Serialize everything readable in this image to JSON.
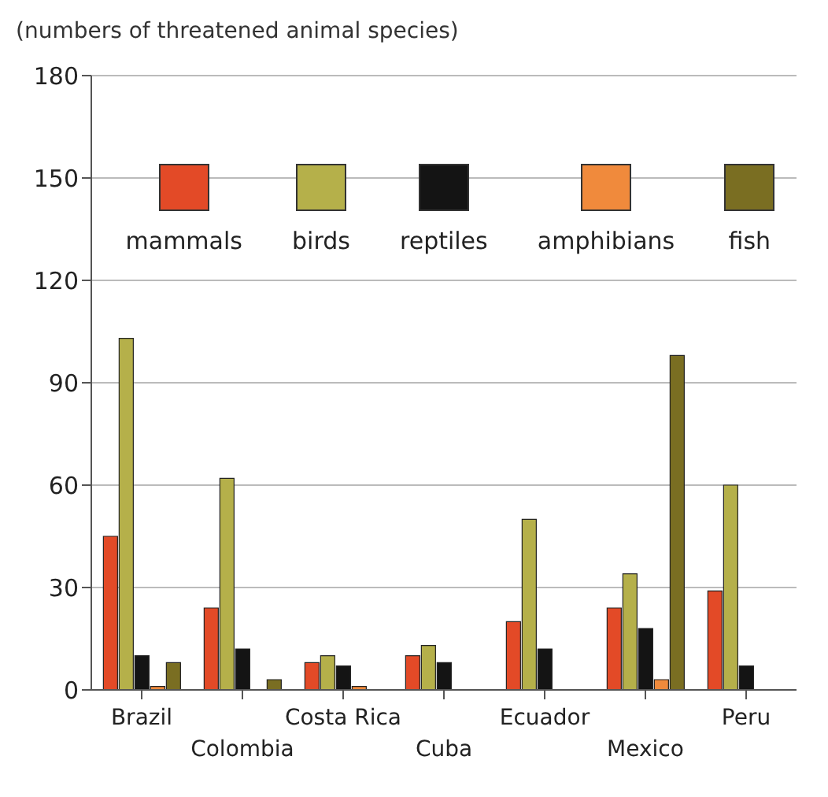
{
  "chart_data": {
    "type": "bar",
    "title": "(numbers of threatened animal species)",
    "categories": [
      "Brazil",
      "Colombia",
      "Costa Rica",
      "Cuba",
      "Ecuador",
      "Mexico",
      "Peru"
    ],
    "series": [
      {
        "name": "mammals",
        "color": "#e34a27",
        "values": [
          45,
          24,
          8,
          10,
          20,
          24,
          29
        ]
      },
      {
        "name": "birds",
        "color": "#b5b04a",
        "values": [
          103,
          62,
          10,
          13,
          50,
          34,
          60
        ]
      },
      {
        "name": "reptiles",
        "color": "#141414",
        "values": [
          10,
          12,
          7,
          8,
          12,
          18,
          7
        ]
      },
      {
        "name": "amphibians",
        "color": "#f08a3c",
        "values": [
          1,
          0,
          1,
          0,
          0,
          3,
          0
        ]
      },
      {
        "name": "fish",
        "color": "#7a6e22",
        "values": [
          8,
          3,
          0,
          0,
          0,
          98,
          0
        ]
      }
    ],
    "ylim": [
      0,
      180
    ],
    "yticks": [
      0,
      30,
      60,
      90,
      120,
      150,
      180
    ],
    "grid": "y",
    "legend": "top"
  }
}
